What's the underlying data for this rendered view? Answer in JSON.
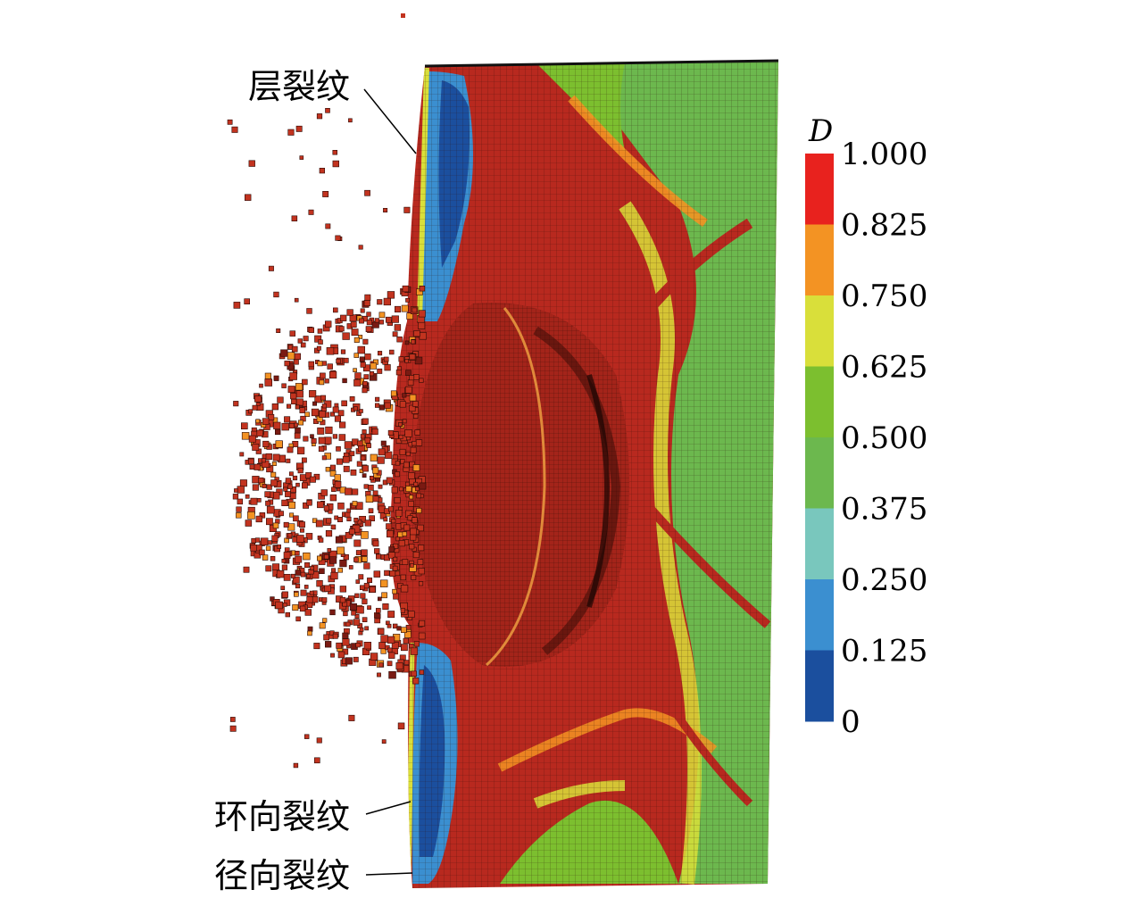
{
  "annotations": {
    "layer_crack": "层裂纹",
    "circumferential_crack": "环向裂纹",
    "radial_crack": "径向裂纹"
  },
  "colorbar": {
    "title": "D",
    "ticks": [
      "1.000",
      "0.825",
      "0.750",
      "0.625",
      "0.500",
      "0.375",
      "0.250",
      "0.125",
      "0"
    ],
    "bands": [
      {
        "from": 0.825,
        "to": 1.0,
        "color": "#e8221e"
      },
      {
        "from": 0.75,
        "to": 0.825,
        "color": "#f39323"
      },
      {
        "from": 0.625,
        "to": 0.75,
        "color": "#d9df3a"
      },
      {
        "from": 0.5,
        "to": 0.625,
        "color": "#7cbf2f"
      },
      {
        "from": 0.375,
        "to": 0.5,
        "color": "#6cb84e"
      },
      {
        "from": 0.25,
        "to": 0.375,
        "color": "#79c7bd"
      },
      {
        "from": 0.125,
        "to": 0.25,
        "color": "#3b8fd0"
      },
      {
        "from": 0.0,
        "to": 0.125,
        "color": "#1b4f9e"
      }
    ]
  },
  "colors": {
    "damaged": "#b8291f",
    "damaged_dark": "#7a1a12",
    "fragment": "#c2331f",
    "intact": "#6cb84e",
    "mid": "#d9df3a",
    "orange": "#f39323",
    "blue": "#1b4f9e",
    "lightblue": "#3b8fd0"
  }
}
